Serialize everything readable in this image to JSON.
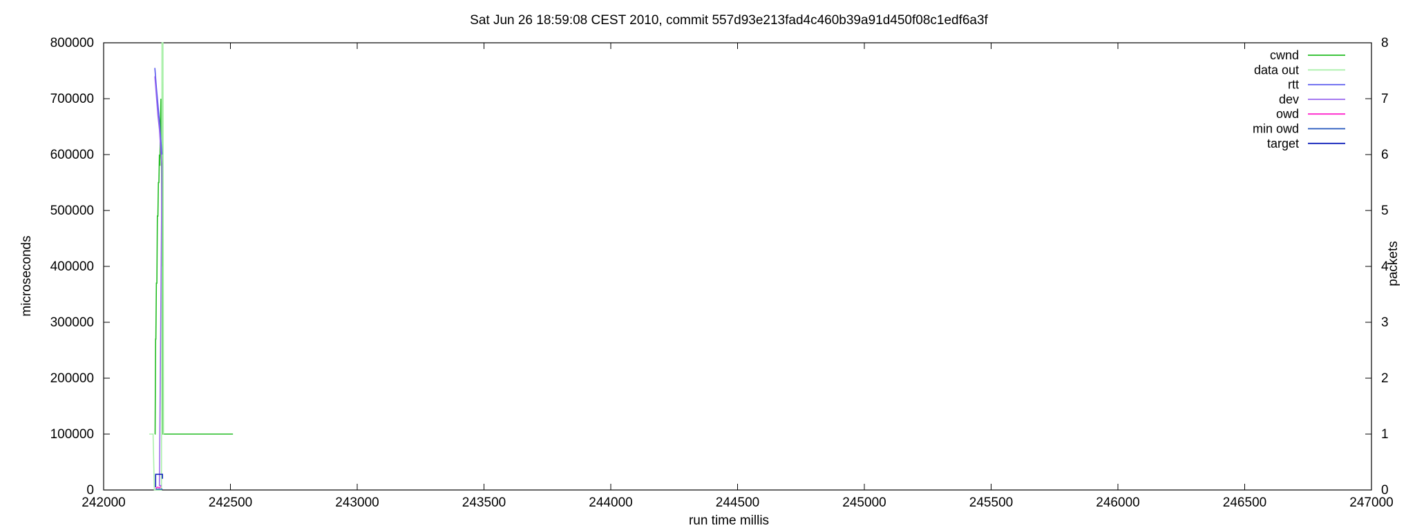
{
  "chart_data": {
    "type": "line",
    "title": "Sat Jun 26 18:59:08 CEST 2010, commit 557d93e213fad4c460b39a91d450f08c1edf6a3f",
    "xlabel": "run time millis",
    "ylabel": "microseconds",
    "y2label": "packets",
    "xlim": [
      242000,
      247000
    ],
    "ylim": [
      0,
      800000
    ],
    "y2lim": [
      0,
      8
    ],
    "x_ticks": [
      "242000",
      "242500",
      "243000",
      "243500",
      "244000",
      "244500",
      "245000",
      "245500",
      "246000",
      "246500",
      "247000"
    ],
    "y_ticks": [
      "0",
      "100000",
      "200000",
      "300000",
      "400000",
      "500000",
      "600000",
      "700000",
      "800000"
    ],
    "y2_ticks": [
      "0",
      "1",
      "2",
      "3",
      "4",
      "5",
      "6",
      "7",
      "8"
    ],
    "legend_position": "top-right",
    "grid": false,
    "series": [
      {
        "name": "cwnd",
        "axis": "y2",
        "color": "#22bb22",
        "x": [
          242202,
          242203,
          242205,
          242206,
          242208,
          242210,
          242212,
          242214,
          242216,
          242218,
          242220,
          242222,
          242224,
          242226,
          242228,
          242230,
          242232,
          242234,
          242510
        ],
        "y": [
          1,
          1,
          2.7,
          2.7,
          3.7,
          3.7,
          4.9,
          4.9,
          5.5,
          5.5,
          6.0,
          5.8,
          6.6,
          7.0,
          6.2,
          4.0,
          7.9,
          1,
          1
        ]
      },
      {
        "name": "data out",
        "axis": "y2",
        "color": "#aaf0aa",
        "x": [
          242180,
          242195,
          242200,
          242210,
          242220,
          242228,
          242230,
          242234,
          242236,
          242238
        ],
        "y": [
          1,
          1,
          0,
          0,
          0,
          0,
          8,
          8,
          1,
          1
        ]
      },
      {
        "name": "rtt",
        "axis": "y1",
        "color": "#5555ee",
        "x": [
          242202,
          242208,
          242214,
          242220,
          242225,
          242230
        ],
        "y": [
          755000,
          720000,
          690000,
          660000,
          630000,
          600000
        ]
      },
      {
        "name": "dev",
        "axis": "y1",
        "color": "#9966ee",
        "x": [
          242202,
          242208,
          242214,
          242220,
          242225,
          242230,
          242220,
          242228
        ],
        "y": [
          740000,
          705000,
          670000,
          645000,
          610000,
          580000,
          8000,
          8000
        ]
      },
      {
        "name": "owd",
        "axis": "y1",
        "color": "#ff22cc",
        "x": [
          242205,
          242212,
          242220,
          242226
        ],
        "y": [
          3000,
          5000,
          4000,
          6000
        ]
      },
      {
        "name": "min owd",
        "axis": "y1",
        "color": "#2255bb",
        "x": [
          242205,
          242215,
          242225,
          242232
        ],
        "y": [
          1500,
          1500,
          1500,
          1500
        ]
      },
      {
        "name": "target",
        "axis": "y1",
        "color": "#1122bb",
        "x": [
          242205,
          242205,
          242228,
          242232,
          242232
        ],
        "y": [
          5000,
          28000,
          28000,
          28000,
          20000
        ]
      }
    ]
  }
}
